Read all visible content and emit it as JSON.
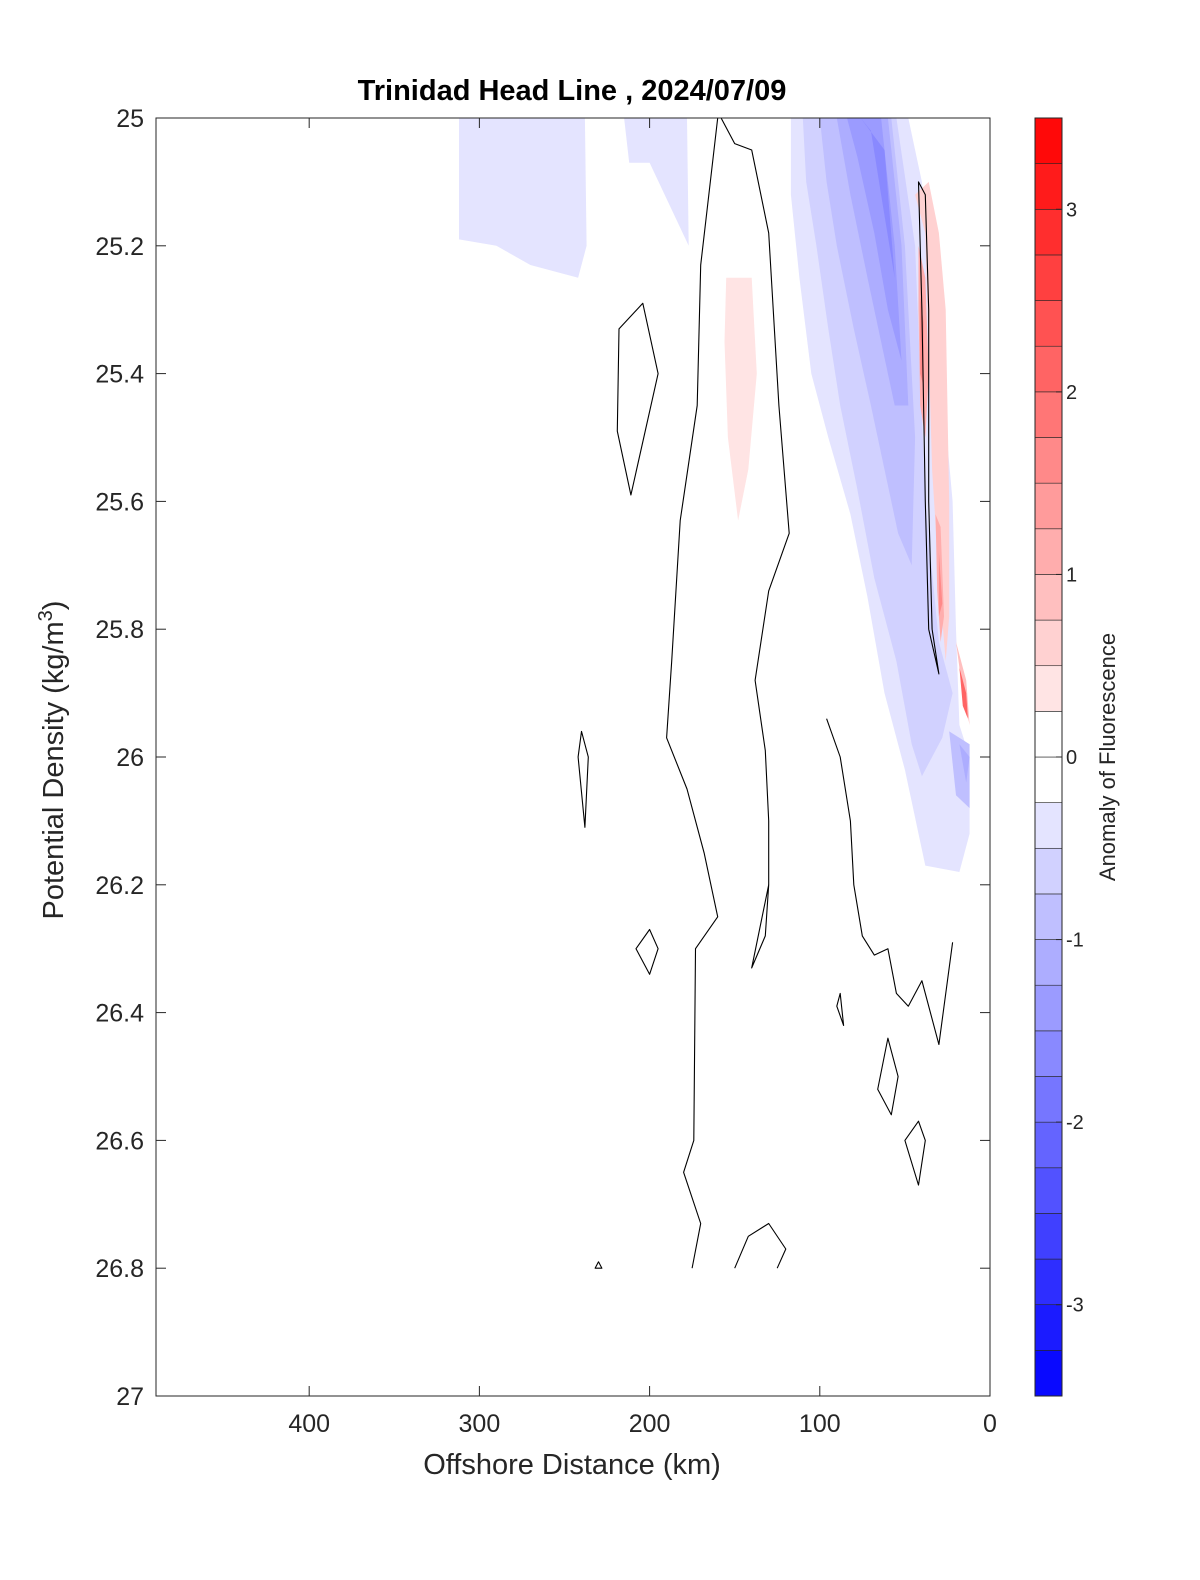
{
  "chart_data": {
    "type": "heatmap",
    "subtype": "filled contour with contour lines",
    "title": "Trinidad Head Line , 2024/07/09",
    "xlabel": "Offshore Distance (km)",
    "ylabel": "Potential Density (kg/m^3)",
    "ylabel_main": "Potential Density (kg/m",
    "ylabel_sup": "3",
    "ylabel_close": ")",
    "xlim": [
      490,
      0
    ],
    "x_reversed": true,
    "ylim": [
      25,
      27
    ],
    "y_reversed": true,
    "xticks": [
      400,
      300,
      200,
      100,
      0
    ],
    "xtick_labels": [
      "400",
      "300",
      "200",
      "100",
      "0"
    ],
    "yticks": [
      25,
      25.2,
      25.4,
      25.6,
      25.8,
      26,
      26.2,
      26.4,
      26.6,
      26.8,
      27
    ],
    "ytick_labels": [
      "25",
      "25.2",
      "25.4",
      "25.6",
      "25.8",
      "26",
      "26.2",
      "26.4",
      "26.6",
      "26.8",
      "27"
    ],
    "colorbar": {
      "label": "Anomaly of Fluorescence",
      "range": [
        -3.5,
        3.5
      ],
      "ticks": [
        3,
        2,
        1,
        0,
        -1,
        -2,
        -3
      ],
      "tick_labels": [
        "3",
        "2",
        "1",
        "0",
        "-1",
        "-2",
        "-3"
      ],
      "level_step": 0.25,
      "neutral_band": [
        -0.25,
        0.25
      ],
      "positive_color": "#ff0000",
      "negative_color": "#0000ff",
      "neutral_color": "#ffffff"
    },
    "filled_regions": [
      {
        "level": -0.375,
        "points": [
          [
            312,
            25.0
          ],
          [
            238,
            25.0
          ],
          [
            237,
            25.2
          ],
          [
            242,
            25.25
          ],
          [
            270,
            25.23
          ],
          [
            290,
            25.2
          ],
          [
            312,
            25.19
          ]
        ]
      },
      {
        "level": -0.375,
        "points": [
          [
            215,
            25.0
          ],
          [
            178,
            25.0
          ],
          [
            177,
            25.2
          ],
          [
            200,
            25.07
          ],
          [
            212,
            25.07
          ]
        ]
      },
      {
        "level": -0.375,
        "points": [
          [
            117,
            25.0
          ],
          [
            82,
            25.0
          ],
          [
            48,
            25.0
          ],
          [
            40,
            25.1
          ],
          [
            32,
            25.3
          ],
          [
            22,
            25.6
          ],
          [
            20,
            25.8
          ],
          [
            18,
            25.95
          ],
          [
            12,
            26.0
          ],
          [
            12,
            26.12
          ],
          [
            18,
            26.18
          ],
          [
            38,
            26.17
          ],
          [
            50,
            26.02
          ],
          [
            62,
            25.9
          ],
          [
            72,
            25.75
          ],
          [
            82,
            25.62
          ],
          [
            95,
            25.5
          ],
          [
            105,
            25.4
          ],
          [
            112,
            25.25
          ],
          [
            117,
            25.12
          ]
        ]
      },
      {
        "level": -0.625,
        "points": [
          [
            110,
            25.0
          ],
          [
            55,
            25.0
          ],
          [
            44,
            25.2
          ],
          [
            38,
            25.6
          ],
          [
            30,
            25.82
          ],
          [
            22,
            25.9
          ],
          [
            28,
            25.97
          ],
          [
            40,
            26.03
          ],
          [
            46,
            25.98
          ],
          [
            55,
            25.85
          ],
          [
            68,
            25.72
          ],
          [
            78,
            25.58
          ],
          [
            88,
            25.45
          ],
          [
            95,
            25.33
          ],
          [
            102,
            25.2
          ],
          [
            108,
            25.1
          ]
        ]
      },
      {
        "level": -0.875,
        "points": [
          [
            100,
            25.0
          ],
          [
            58,
            25.0
          ],
          [
            50,
            25.2
          ],
          [
            44,
            25.5
          ],
          [
            46,
            25.7
          ],
          [
            54,
            25.65
          ],
          [
            62,
            25.55
          ],
          [
            70,
            25.45
          ],
          [
            80,
            25.33
          ],
          [
            90,
            25.2
          ],
          [
            96,
            25.1
          ]
        ]
      },
      {
        "level": -1.125,
        "points": [
          [
            90,
            25.0
          ],
          [
            60,
            25.0
          ],
          [
            52,
            25.2
          ],
          [
            48,
            25.45
          ],
          [
            56,
            25.45
          ],
          [
            64,
            25.35
          ],
          [
            72,
            25.25
          ],
          [
            82,
            25.12
          ]
        ]
      },
      {
        "level": -1.375,
        "points": [
          [
            84,
            25.0
          ],
          [
            64,
            25.0
          ],
          [
            56,
            25.2
          ],
          [
            52,
            25.38
          ],
          [
            60,
            25.3
          ],
          [
            68,
            25.18
          ],
          [
            78,
            25.06
          ]
        ]
      },
      {
        "level": -1.625,
        "points": [
          [
            76,
            25.0
          ],
          [
            62,
            25.05
          ],
          [
            56,
            25.25
          ],
          [
            64,
            25.12
          ],
          [
            70,
            25.02
          ]
        ]
      },
      {
        "level": -0.875,
        "points": [
          [
            24,
            25.96
          ],
          [
            12,
            25.98
          ],
          [
            12,
            26.08
          ],
          [
            20,
            26.06
          ]
        ]
      },
      {
        "level": -1.125,
        "points": [
          [
            18,
            25.98
          ],
          [
            12,
            26.0
          ],
          [
            14,
            26.04
          ]
        ]
      },
      {
        "level": 0.375,
        "points": [
          [
            155,
            25.25
          ],
          [
            140,
            25.25
          ],
          [
            137,
            25.4
          ],
          [
            142,
            25.55
          ],
          [
            148,
            25.63
          ],
          [
            154,
            25.5
          ],
          [
            156,
            25.35
          ]
        ]
      },
      {
        "level": 0.625,
        "points": [
          [
            44,
            25.12
          ],
          [
            38,
            25.18
          ],
          [
            34,
            25.55
          ],
          [
            30,
            25.72
          ],
          [
            26,
            25.85
          ],
          [
            24,
            25.78
          ],
          [
            24,
            25.6
          ],
          [
            26,
            25.3
          ],
          [
            30,
            25.18
          ],
          [
            36,
            25.1
          ]
        ]
      },
      {
        "level": 1.125,
        "points": [
          [
            42,
            25.2
          ],
          [
            38,
            25.25
          ],
          [
            36,
            25.4
          ],
          [
            38,
            25.5
          ],
          [
            41,
            25.45
          ],
          [
            42,
            25.3
          ]
        ]
      },
      {
        "level": 1.625,
        "points": [
          [
            41,
            25.28
          ],
          [
            39,
            25.32
          ],
          [
            39,
            25.42
          ],
          [
            41,
            25.4
          ]
        ]
      },
      {
        "level": 1.125,
        "points": [
          [
            32,
            25.62
          ],
          [
            29,
            25.64
          ],
          [
            27,
            25.78
          ],
          [
            29,
            25.82
          ],
          [
            31,
            25.74
          ]
        ]
      },
      {
        "level": 1.625,
        "points": [
          [
            30,
            25.68
          ],
          [
            28,
            25.76
          ],
          [
            30,
            25.78
          ]
        ]
      },
      {
        "level": 0.875,
        "points": [
          [
            20,
            25.82
          ],
          [
            14,
            25.88
          ],
          [
            12,
            25.95
          ],
          [
            16,
            25.9
          ]
        ]
      },
      {
        "level": 2.125,
        "points": [
          [
            18,
            25.86
          ],
          [
            14,
            25.9
          ],
          [
            13,
            25.94
          ],
          [
            16,
            25.92
          ]
        ]
      }
    ],
    "contour_lines": [
      {
        "closed": false,
        "points": [
          [
            160,
            25.0
          ],
          [
            170,
            25.23
          ],
          [
            172,
            25.45
          ],
          [
            182,
            25.63
          ],
          [
            187,
            25.85
          ],
          [
            190,
            25.97
          ],
          [
            178,
            26.05
          ],
          [
            168,
            26.15
          ],
          [
            160,
            26.25
          ],
          [
            173,
            26.3
          ],
          [
            174,
            26.6
          ],
          [
            180,
            26.65
          ],
          [
            170,
            26.73
          ],
          [
            175,
            26.8
          ]
        ]
      },
      {
        "closed": false,
        "points": [
          [
            158,
            25.0
          ],
          [
            150,
            25.04
          ],
          [
            140,
            25.05
          ],
          [
            130,
            25.18
          ],
          [
            124,
            25.45
          ],
          [
            118,
            25.65
          ],
          [
            130,
            25.74
          ],
          [
            138,
            25.88
          ],
          [
            132,
            25.99
          ],
          [
            130,
            26.1
          ],
          [
            130,
            26.2
          ],
          [
            140,
            26.33
          ],
          [
            132,
            26.28
          ],
          [
            130,
            26.2
          ]
        ]
      },
      {
        "closed": true,
        "points": [
          [
            204,
            25.29
          ],
          [
            218,
            25.33
          ],
          [
            219,
            25.49
          ],
          [
            211,
            25.59
          ],
          [
            195,
            25.4
          ]
        ]
      },
      {
        "closed": true,
        "points": [
          [
            240,
            25.96
          ],
          [
            242,
            26.0
          ],
          [
            238,
            26.11
          ],
          [
            236,
            26.0
          ]
        ]
      },
      {
        "closed": true,
        "points": [
          [
            200,
            26.27
          ],
          [
            208,
            26.3
          ],
          [
            200,
            26.34
          ],
          [
            195,
            26.3
          ]
        ]
      },
      {
        "closed": false,
        "points": [
          [
            96,
            25.94
          ],
          [
            88,
            26.0
          ],
          [
            82,
            26.1
          ],
          [
            80,
            26.2
          ],
          [
            75,
            26.28
          ],
          [
            68,
            26.31
          ],
          [
            60,
            26.3
          ],
          [
            55,
            26.37
          ],
          [
            48,
            26.39
          ],
          [
            40,
            26.35
          ],
          [
            30,
            26.45
          ],
          [
            22,
            26.29
          ]
        ]
      },
      {
        "closed": true,
        "points": [
          [
            88,
            26.37
          ],
          [
            86,
            26.42
          ],
          [
            90,
            26.39
          ]
        ]
      },
      {
        "closed": true,
        "points": [
          [
            60,
            26.44
          ],
          [
            66,
            26.52
          ],
          [
            58,
            26.56
          ],
          [
            54,
            26.5
          ]
        ]
      },
      {
        "closed": true,
        "points": [
          [
            42,
            26.57
          ],
          [
            50,
            26.6
          ],
          [
            42,
            26.67
          ],
          [
            38,
            26.6
          ]
        ]
      },
      {
        "closed": false,
        "points": [
          [
            150,
            26.8
          ],
          [
            142,
            26.75
          ],
          [
            130,
            26.73
          ],
          [
            120,
            26.77
          ],
          [
            125,
            26.8
          ]
        ]
      },
      {
        "closed": true,
        "points": [
          [
            230,
            26.79
          ],
          [
            232,
            26.8
          ],
          [
            228,
            26.8
          ]
        ]
      },
      {
        "closed": true,
        "points": [
          [
            42,
            25.1
          ],
          [
            40,
            25.3
          ],
          [
            38,
            25.6
          ],
          [
            36,
            25.8
          ],
          [
            30,
            25.87
          ],
          [
            34,
            25.8
          ],
          [
            36,
            25.6
          ],
          [
            36,
            25.3
          ],
          [
            38,
            25.12
          ]
        ]
      }
    ]
  }
}
